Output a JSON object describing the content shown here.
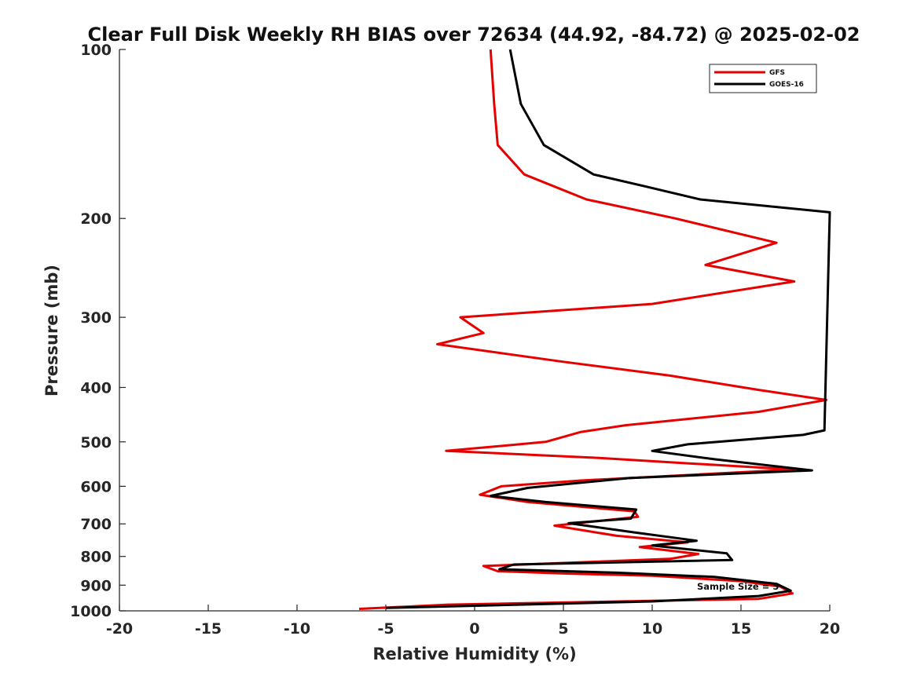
{
  "chart_data": {
    "type": "line",
    "title": "Clear Full Disk Weekly RH BIAS over 72634 (44.92, -84.72) @ 2025-02-02",
    "xlabel": "Relative Humidity (%)",
    "ylabel": "Pressure (mb)",
    "xlim": [
      -20,
      20
    ],
    "ylim": [
      100,
      1000
    ],
    "yscale": "log",
    "reverse_y": true,
    "xticks": [
      -20,
      -15,
      -10,
      -5,
      0,
      5,
      10,
      15,
      20
    ],
    "xtick_labels": [
      "-20",
      "-15",
      "-10",
      "-5",
      "0",
      "5",
      "10",
      "15",
      "20"
    ],
    "yticks": [
      100,
      200,
      300,
      400,
      500,
      600,
      700,
      800,
      900,
      1000
    ],
    "ytick_labels": [
      "100",
      "200",
      "300",
      "400",
      "500",
      "600",
      "700",
      "800",
      "900",
      "1000"
    ],
    "legend_position": "top-right",
    "grid": false,
    "annotation": "Sample Size = 5",
    "series": [
      {
        "name": "GFS",
        "color": "#e60000",
        "points": [
          [
            0.9,
            100
          ],
          [
            1.1,
            125
          ],
          [
            1.3,
            148
          ],
          [
            2.8,
            167
          ],
          [
            6.3,
            185
          ],
          [
            11.3,
            200
          ],
          [
            17.0,
            221
          ],
          [
            13.0,
            242
          ],
          [
            18.0,
            259
          ],
          [
            10.0,
            284
          ],
          [
            -0.8,
            300
          ],
          [
            0.5,
            320
          ],
          [
            -2.1,
            335
          ],
          [
            5.0,
            360
          ],
          [
            11.0,
            381
          ],
          [
            16.0,
            404
          ],
          [
            19.8,
            421
          ],
          [
            16.0,
            442
          ],
          [
            8.5,
            467
          ],
          [
            6.0,
            480
          ],
          [
            4.0,
            500
          ],
          [
            -1.6,
            519
          ],
          [
            7.0,
            534
          ],
          [
            12.0,
            546
          ],
          [
            18.0,
            560
          ],
          [
            6.0,
            586
          ],
          [
            1.5,
            600
          ],
          [
            0.3,
            621
          ],
          [
            3.0,
            640
          ],
          [
            9.0,
            665
          ],
          [
            9.2,
            680
          ],
          [
            4.5,
            705
          ],
          [
            8.0,
            735
          ],
          [
            12.0,
            755
          ],
          [
            9.3,
            770
          ],
          [
            12.6,
            792
          ],
          [
            11.0,
            808
          ],
          [
            0.5,
            832
          ],
          [
            1.3,
            850
          ],
          [
            5.0,
            858
          ],
          [
            10.0,
            866
          ],
          [
            15.0,
            885
          ],
          [
            17.2,
            905
          ],
          [
            17.9,
            931
          ],
          [
            16.0,
            952
          ],
          [
            -1.5,
            975
          ],
          [
            -6.5,
            992
          ]
        ]
      },
      {
        "name": "GOES-16",
        "color": "#000000",
        "points": [
          [
            2.0,
            100
          ],
          [
            2.6,
            125
          ],
          [
            3.9,
            148
          ],
          [
            6.7,
            167
          ],
          [
            9.5,
            175
          ],
          [
            12.7,
            185
          ],
          [
            20.0,
            195
          ],
          [
            19.7,
            477
          ],
          [
            18.5,
            486
          ],
          [
            12.0,
            505
          ],
          [
            10.0,
            519
          ],
          [
            13.5,
            537
          ],
          [
            19.0,
            562
          ],
          [
            8.7,
            580
          ],
          [
            3.0,
            604
          ],
          [
            0.9,
            624
          ],
          [
            4.0,
            640
          ],
          [
            9.1,
            660
          ],
          [
            8.8,
            685
          ],
          [
            5.3,
            698
          ],
          [
            9.0,
            725
          ],
          [
            12.5,
            750
          ],
          [
            10.0,
            765
          ],
          [
            14.2,
            790
          ],
          [
            14.5,
            812
          ],
          [
            2.2,
            827
          ],
          [
            1.4,
            843
          ],
          [
            8.0,
            855
          ],
          [
            13.5,
            870
          ],
          [
            17.0,
            895
          ],
          [
            17.8,
            921
          ],
          [
            16.0,
            941
          ],
          [
            10.0,
            962
          ],
          [
            -5.0,
            988
          ]
        ]
      }
    ]
  }
}
